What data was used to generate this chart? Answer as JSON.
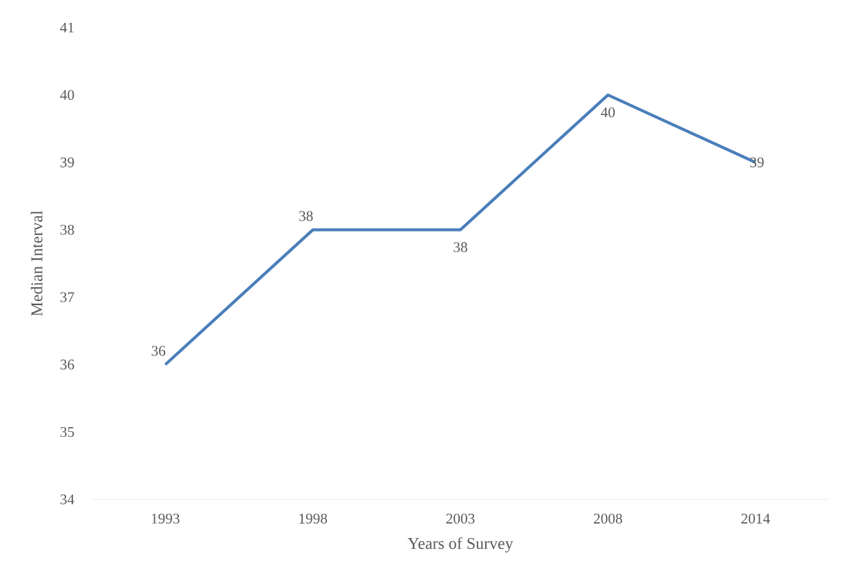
{
  "chart_data": {
    "type": "line",
    "xlabel": "Years of Survey",
    "ylabel": "Median Interval",
    "categories": [
      "1993",
      "1998",
      "2003",
      "2008",
      "2014"
    ],
    "values": [
      36,
      38,
      38,
      40,
      39
    ],
    "color": "#4a7ebb",
    "ylim": [
      34,
      41
    ],
    "yticks": [
      34,
      35,
      36,
      37,
      38,
      39,
      40,
      41
    ],
    "data_labels": true,
    "marker": "none",
    "line_style": "solid"
  }
}
